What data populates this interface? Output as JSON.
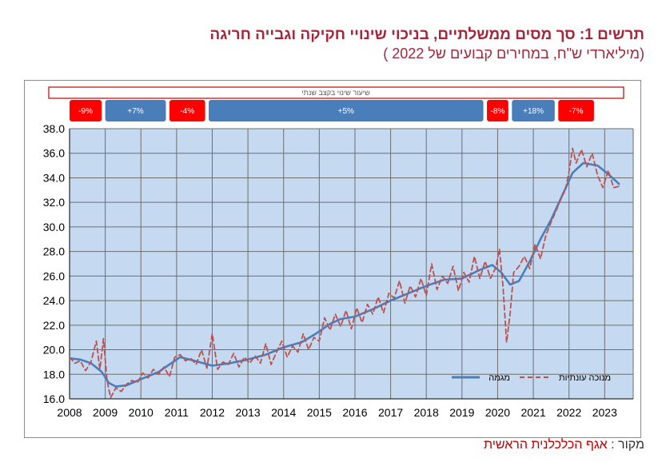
{
  "title": "תרשים 1: סך מסים ממשלתיים, בניכוי שינויי חקיקה וגבייה חריגה",
  "subtitle": "(מיליארדי ש\"ח, במחירים קבועים של 2022 )",
  "source": {
    "label": "מקור :",
    "text": "אגף הכלכלנית הראשית"
  },
  "colors": {
    "title": "#a3263a",
    "plot_bg": "#c5d9f1",
    "trend": "#4a7ebb",
    "seasonal": "#c0504d",
    "band_negative": "#ff0000",
    "band_positive": "#4a7ebb",
    "grid": "#6e6e6e"
  },
  "chart_data": {
    "type": "line",
    "bands_header": "שיעור שינוי בקצב שנתי",
    "bands": [
      {
        "label": "-9%",
        "start": 2008.0,
        "end": 2008.9,
        "sign": "negative"
      },
      {
        "label": "+7%",
        "start": 2009.0,
        "end": 2010.7,
        "sign": "positive"
      },
      {
        "label": "-4%",
        "start": 2010.8,
        "end": 2011.8,
        "sign": "negative"
      },
      {
        "label": "+5%",
        "start": 2011.9,
        "end": 2019.6,
        "sign": "positive"
      },
      {
        "label": "-8%",
        "start": 2019.7,
        "end": 2020.3,
        "sign": "negative"
      },
      {
        "label": "+18%",
        "start": 2020.4,
        "end": 2021.6,
        "sign": "positive"
      },
      {
        "label": "-7%",
        "start": 2021.7,
        "end": 2022.7,
        "sign": "negative"
      }
    ],
    "xlim": [
      2008,
      2023.8
    ],
    "x_ticks": [
      2008,
      2009,
      2010,
      2011,
      2012,
      2013,
      2014,
      2015,
      2016,
      2017,
      2018,
      2019,
      2020,
      2021,
      2022,
      2023
    ],
    "ylim": [
      16,
      38
    ],
    "y_ticks": [
      "16.0",
      "18.0",
      "20.0",
      "22.0",
      "24.0",
      "26.0",
      "28.0",
      "30.0",
      "32.0",
      "34.0",
      "36.0",
      "38.0"
    ],
    "grid": true,
    "legend_position": "bottom-right",
    "series": [
      {
        "name": "מגמה",
        "style": "solid",
        "x": [
          2008.0,
          2008.3,
          2008.6,
          2008.9,
          2009.1,
          2009.3,
          2009.6,
          2010.0,
          2010.5,
          2010.8,
          2011.1,
          2011.5,
          2012.0,
          2012.5,
          2013.0,
          2013.5,
          2014.0,
          2014.5,
          2014.9,
          2015.3,
          2015.6,
          2016.0,
          2016.5,
          2017.0,
          2017.5,
          2018.0,
          2018.5,
          2019.0,
          2019.5,
          2019.85,
          2020.1,
          2020.35,
          2020.6,
          2020.9,
          2021.2,
          2021.5,
          2021.8,
          2022.1,
          2022.4,
          2022.8,
          2023.1,
          2023.4
        ],
        "values": [
          19.3,
          19.2,
          18.9,
          18.2,
          17.3,
          17.0,
          17.1,
          17.6,
          18.2,
          18.8,
          19.4,
          19.1,
          18.7,
          18.9,
          19.2,
          19.6,
          20.2,
          20.6,
          21.3,
          22.1,
          22.5,
          22.7,
          23.3,
          24.0,
          24.6,
          25.2,
          25.7,
          25.8,
          26.5,
          26.9,
          26.3,
          25.3,
          25.6,
          27.2,
          29.0,
          30.6,
          32.5,
          34.4,
          35.2,
          35.0,
          34.3,
          33.5
        ]
      },
      {
        "name": "מנוכה עונתיות",
        "style": "dashed",
        "x": [
          2008.0,
          2008.15,
          2008.3,
          2008.45,
          2008.6,
          2008.75,
          2008.85,
          2008.95,
          2009.05,
          2009.15,
          2009.3,
          2009.45,
          2009.6,
          2009.75,
          2009.9,
          2010.05,
          2010.2,
          2010.35,
          2010.5,
          2010.65,
          2010.8,
          2010.95,
          2011.1,
          2011.25,
          2011.4,
          2011.55,
          2011.7,
          2011.85,
          2012.0,
          2012.15,
          2012.3,
          2012.45,
          2012.6,
          2012.75,
          2012.9,
          2013.05,
          2013.2,
          2013.35,
          2013.5,
          2013.65,
          2013.8,
          2013.95,
          2014.1,
          2014.25,
          2014.4,
          2014.55,
          2014.7,
          2014.85,
          2015.0,
          2015.15,
          2015.3,
          2015.45,
          2015.6,
          2015.75,
          2015.9,
          2016.05,
          2016.2,
          2016.35,
          2016.5,
          2016.65,
          2016.8,
          2016.95,
          2017.1,
          2017.25,
          2017.4,
          2017.55,
          2017.7,
          2017.85,
          2018.0,
          2018.15,
          2018.3,
          2018.45,
          2018.6,
          2018.75,
          2018.9,
          2019.05,
          2019.2,
          2019.35,
          2019.5,
          2019.65,
          2019.8,
          2019.95,
          2020.05,
          2020.15,
          2020.25,
          2020.35,
          2020.45,
          2020.6,
          2020.75,
          2020.9,
          2021.05,
          2021.2,
          2021.35,
          2021.5,
          2021.65,
          2021.8,
          2021.9,
          2022.0,
          2022.1,
          2022.2,
          2022.35,
          2022.5,
          2022.65,
          2022.8,
          2022.95,
          2023.1,
          2023.25,
          2023.4
        ],
        "values": [
          19.4,
          18.9,
          19.1,
          18.3,
          19.0,
          20.7,
          18.4,
          20.9,
          17.5,
          16.1,
          16.9,
          16.6,
          17.2,
          17.5,
          17.3,
          18.1,
          17.7,
          18.4,
          18.0,
          18.6,
          17.8,
          19.4,
          19.6,
          19.1,
          19.3,
          18.8,
          20.0,
          18.5,
          21.3,
          18.4,
          19.0,
          18.8,
          19.7,
          18.6,
          19.4,
          18.9,
          19.5,
          18.9,
          20.5,
          18.8,
          19.8,
          20.7,
          19.4,
          20.3,
          19.8,
          21.3,
          20.0,
          21.0,
          20.7,
          22.6,
          21.6,
          22.9,
          21.9,
          23.2,
          21.7,
          23.4,
          22.2,
          23.7,
          22.9,
          24.3,
          23.0,
          24.6,
          24.2,
          25.6,
          23.8,
          25.2,
          24.3,
          25.8,
          24.4,
          27.0,
          24.9,
          26.0,
          25.4,
          26.8,
          24.8,
          26.3,
          25.5,
          27.6,
          25.8,
          27.2,
          25.8,
          26.7,
          28.2,
          25.2,
          20.6,
          23.0,
          26.3,
          26.8,
          27.6,
          26.6,
          28.6,
          27.4,
          29.3,
          30.4,
          31.4,
          32.5,
          33.0,
          34.5,
          36.4,
          35.2,
          36.3,
          34.9,
          36.0,
          34.2,
          33.2,
          34.6,
          33.2,
          33.3
        ]
      }
    ]
  }
}
